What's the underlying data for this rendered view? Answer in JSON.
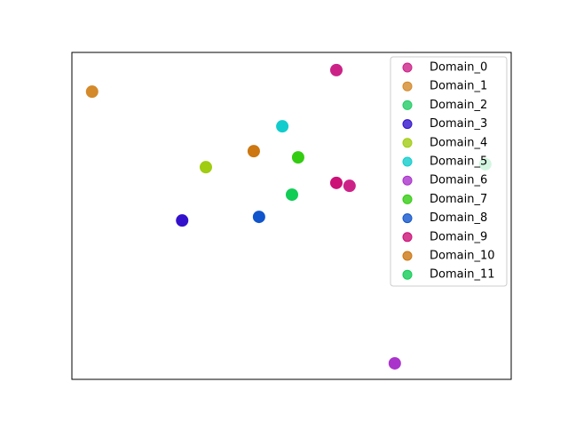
{
  "chart_data": {
    "type": "scatter",
    "xlim": [
      0,
      100
    ],
    "ylim": [
      0,
      100
    ],
    "legend": "upper right",
    "series": [
      {
        "name": "Domain_0",
        "color": "#cc2288",
        "x": [
          60.2,
          63.2
        ],
        "values": [
          94.6,
          59.2
        ]
      },
      {
        "name": "Domain_1",
        "color": "#d4892a",
        "x": [
          4.6
        ],
        "values": [
          88.0
        ]
      },
      {
        "name": "Domain_2",
        "color": "#22cc66",
        "x": [
          94.1
        ],
        "values": [
          65.8
        ]
      },
      {
        "name": "Domain_3",
        "color": "#3311cc",
        "x": [
          25.1
        ],
        "values": [
          48.6
        ]
      },
      {
        "name": "Domain_4",
        "color": "#a0cc11",
        "x": [
          30.5
        ],
        "values": [
          64.9
        ]
      },
      {
        "name": "Domain_5",
        "color": "#11cccc",
        "x": [
          47.9
        ],
        "values": [
          77.4
        ]
      },
      {
        "name": "Domain_6",
        "color": "#aa33cc",
        "x": [
          73.5
        ],
        "values": [
          4.9
        ]
      },
      {
        "name": "Domain_7",
        "color": "#33cc11",
        "x": [
          51.5
        ],
        "values": [
          67.9
        ]
      },
      {
        "name": "Domain_8",
        "color": "#1155cc",
        "x": [
          42.6
        ],
        "values": [
          49.7
        ]
      },
      {
        "name": "Domain_9",
        "color": "#cc1177",
        "x": [
          60.2
        ],
        "values": [
          60.1
        ]
      },
      {
        "name": "Domain_10",
        "color": "#cc7711",
        "x": [
          41.4
        ],
        "values": [
          69.8
        ]
      },
      {
        "name": "Domain_11",
        "color": "#11cc55",
        "x": [
          50.1
        ],
        "values": [
          56.5
        ]
      }
    ]
  }
}
